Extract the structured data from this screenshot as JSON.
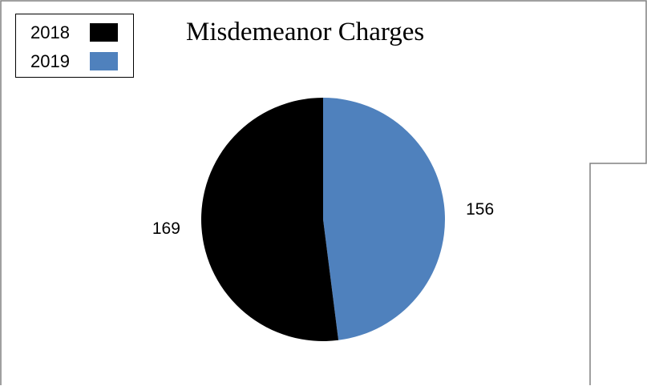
{
  "chart_data": {
    "type": "pie",
    "title": "Misdemeanor Charges",
    "categories": [
      "2018",
      "2019"
    ],
    "values": [
      169,
      156
    ],
    "colors": [
      "#000000",
      "#4f81bd"
    ],
    "legend": "top-left"
  }
}
